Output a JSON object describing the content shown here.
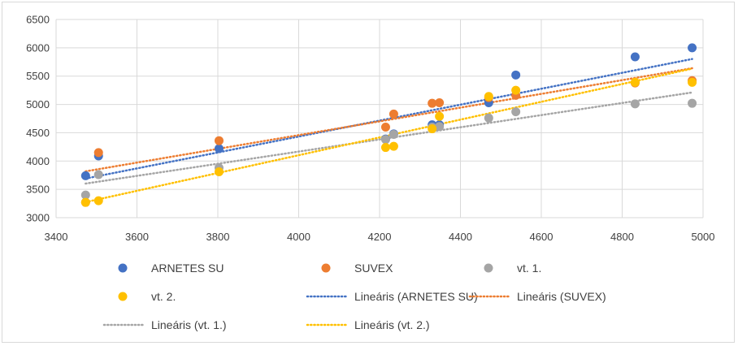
{
  "chart_data": {
    "type": "scatter",
    "title": "",
    "xlabel": "",
    "ylabel": "",
    "xlim": [
      3400,
      5000
    ],
    "ylim": [
      3000,
      6500
    ],
    "x_ticks": [
      3400,
      3600,
      3800,
      4000,
      4200,
      4400,
      4600,
      4800,
      5000
    ],
    "y_ticks": [
      3000,
      3500,
      4000,
      4500,
      5000,
      5500,
      6000,
      6500
    ],
    "grid": true,
    "legend_position": "bottom",
    "x": [
      3473,
      3505,
      3803,
      4215,
      4235,
      4330,
      4348,
      4470,
      4537,
      4832,
      4973
    ],
    "series": [
      {
        "name": "ARNETES SU",
        "color": "#4472c4",
        "values": [
          3740,
          4090,
          4220,
          4390,
          4480,
          4640,
          4640,
          5030,
          5520,
          5840,
          6000
        ],
        "trend_label": "Lineáris (ARNETES SU)"
      },
      {
        "name": "SUVEX",
        "color": "#ed7d31",
        "values": [
          3270,
          4150,
          4360,
          4600,
          4830,
          5020,
          5030,
          5120,
          5160,
          5380,
          5420
        ],
        "trend_label": "Lineáris (SUVEX)"
      },
      {
        "name": "vt. 1.",
        "color": "#a5a5a5",
        "values": [
          3400,
          3760,
          3880,
          4380,
          4470,
          4600,
          4610,
          4760,
          4870,
          5010,
          5020
        ],
        "trend_label": "Lineáris (vt. 1.)"
      },
      {
        "name": "vt. 2.",
        "color": "#ffc000",
        "values": [
          3270,
          3300,
          3810,
          4240,
          4260,
          4570,
          4790,
          5140,
          5250,
          5390,
          5390
        ],
        "trend_label": "Lineáris (vt. 2.)"
      }
    ]
  }
}
